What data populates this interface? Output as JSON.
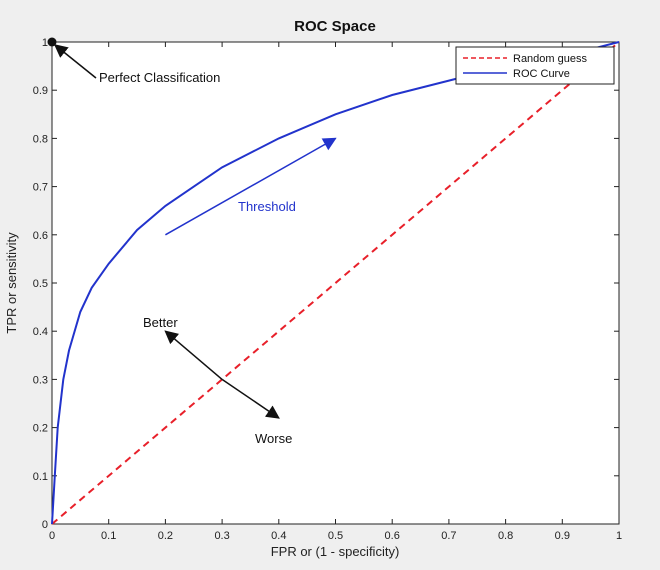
{
  "chart_data": {
    "type": "line",
    "title": "ROC Space",
    "xlabel": "FPR or (1 - specificity)",
    "ylabel": "TPR or sensitivity",
    "xlim": [
      0,
      1
    ],
    "ylim": [
      0,
      1
    ],
    "x_ticks": [
      "0",
      "0.1",
      "0.2",
      "0.3",
      "0.4",
      "0.5",
      "0.6",
      "0.7",
      "0.8",
      "0.9",
      "1"
    ],
    "y_ticks": [
      "0",
      "0.1",
      "0.2",
      "0.3",
      "0.4",
      "0.5",
      "0.6",
      "0.7",
      "0.8",
      "0.9",
      "1"
    ],
    "grid": false,
    "legend_position": "top-right",
    "series": [
      {
        "name": "Random guess",
        "style": "dashed",
        "color": "#e8202a",
        "x": [
          0,
          1
        ],
        "y": [
          0,
          1
        ]
      },
      {
        "name": "ROC Curve",
        "style": "solid",
        "color": "#2233cc",
        "x": [
          0,
          0.005,
          0.01,
          0.02,
          0.03,
          0.05,
          0.07,
          0.1,
          0.15,
          0.2,
          0.25,
          0.3,
          0.35,
          0.4,
          0.5,
          0.6,
          0.7,
          0.8,
          0.9,
          0.95,
          1.0
        ],
        "y": [
          0,
          0.1,
          0.2,
          0.3,
          0.36,
          0.44,
          0.49,
          0.54,
          0.61,
          0.66,
          0.7,
          0.74,
          0.77,
          0.8,
          0.85,
          0.89,
          0.92,
          0.95,
          0.97,
          0.985,
          1.0
        ]
      }
    ],
    "annotations": {
      "perfect": {
        "text": "Perfect Classification",
        "x": 0,
        "y": 1
      },
      "threshold": {
        "text": "Threshold",
        "from": [
          0.2,
          0.6
        ],
        "to": [
          0.5,
          0.8
        ]
      },
      "better": {
        "text": "Better",
        "toward": [
          0.2,
          0.4
        ]
      },
      "worse": {
        "text": "Worse",
        "toward": [
          0.4,
          0.22
        ]
      }
    }
  }
}
